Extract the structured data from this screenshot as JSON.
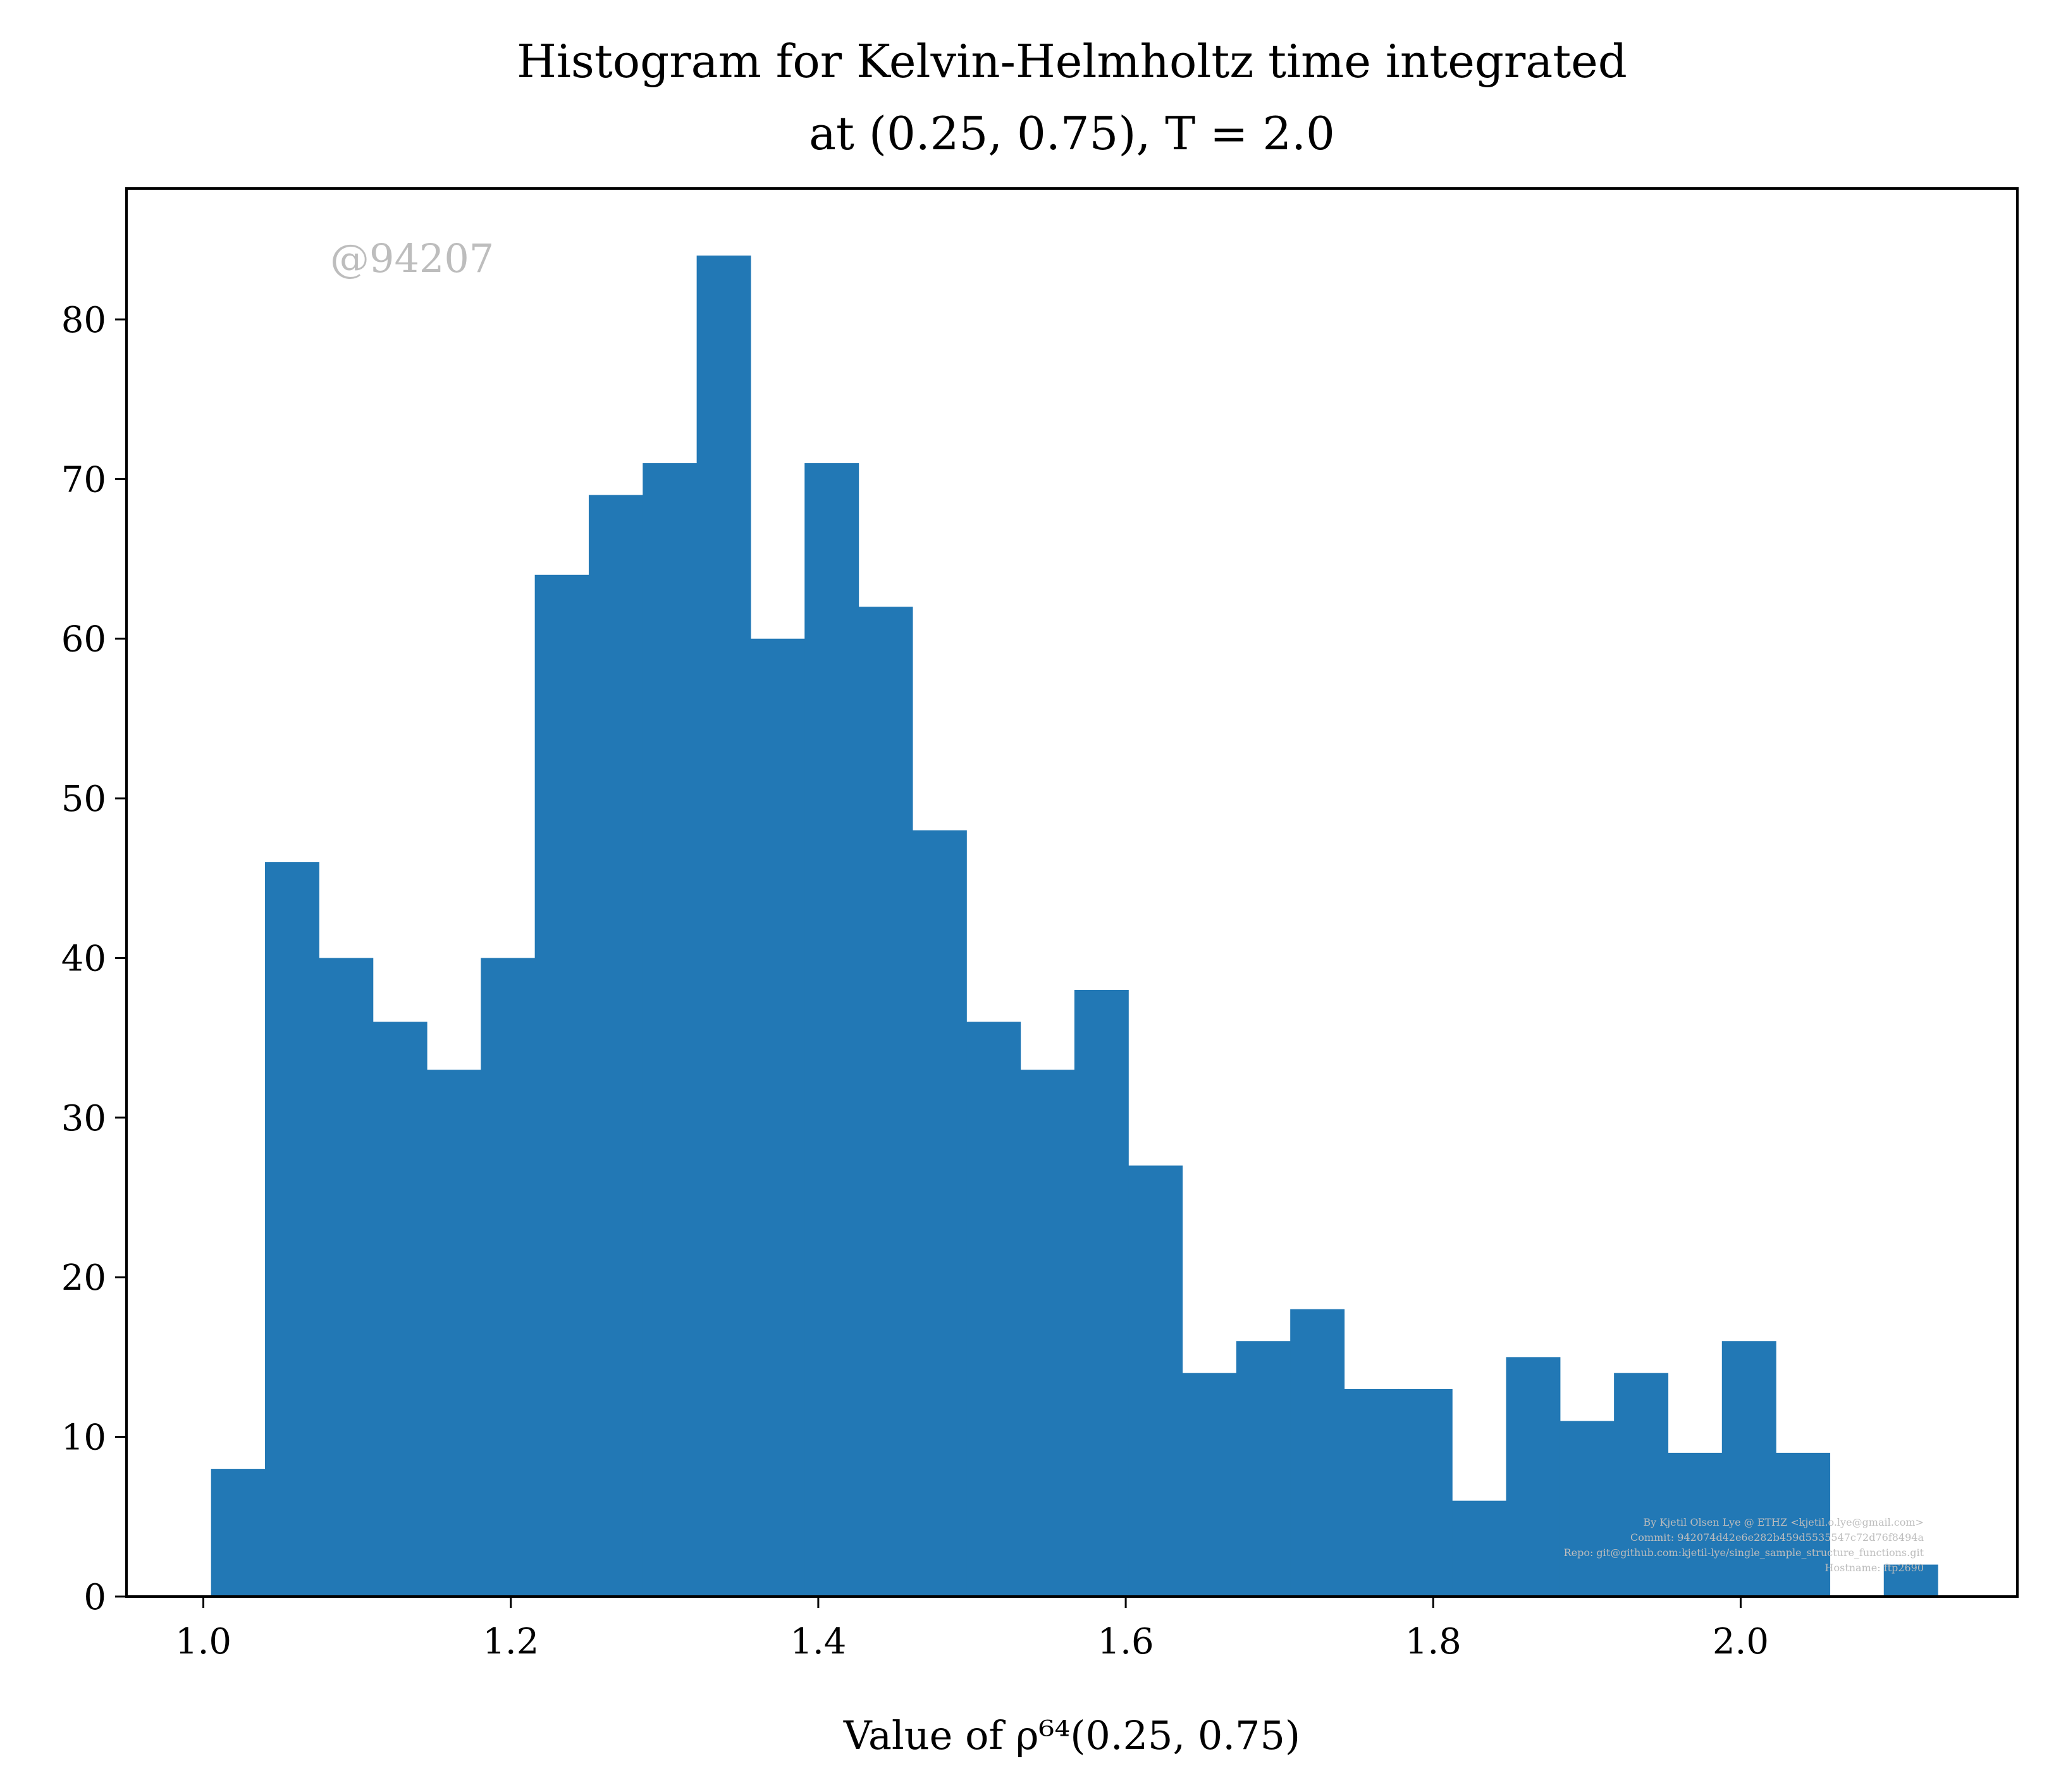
{
  "chart_data": {
    "type": "bar",
    "title_line1": "Histogram for Kelvin-Helmholtz time integrated",
    "title_line2": "at (0.25, 0.75), T = 2.0",
    "xlabel": "Value of ρ⁶⁴(0.25, 0.75)",
    "ylabel": "",
    "xlim": [
      0.95,
      2.18
    ],
    "ylim": [
      0,
      88.2
    ],
    "x_ticks": [
      1.0,
      1.2,
      1.4,
      1.6,
      1.8,
      2.0
    ],
    "x_tick_labels": [
      "1.0",
      "1.2",
      "1.4",
      "1.6",
      "1.8",
      "2.0"
    ],
    "y_ticks": [
      0,
      10,
      20,
      30,
      40,
      50,
      60,
      70,
      80
    ],
    "y_tick_labels": [
      "0",
      "10",
      "20",
      "30",
      "40",
      "50",
      "60",
      "70",
      "80"
    ],
    "bin_start": 1.005,
    "bin_width": 0.0351,
    "values": [
      8,
      46,
      40,
      36,
      33,
      40,
      64,
      69,
      71,
      84,
      60,
      71,
      62,
      48,
      36,
      33,
      38,
      27,
      14,
      16,
      18,
      13,
      13,
      6,
      15,
      11,
      14,
      9,
      16,
      9,
      0,
      2
    ],
    "bar_color": "#2278b5",
    "grid": false,
    "legend": "none"
  },
  "watermark": "@94207",
  "footer_lines": [
    "By Kjetil Olsen Lye @ ETHZ <kjetil.o.lye@gmail.com>",
    "Commit: 942074d42e6e282b459d5535547c72d76f8494a",
    "Repo: git@github.com:kjetil-lye/single_sample_structure_functions.git",
    "Hostname: ftp2690"
  ]
}
